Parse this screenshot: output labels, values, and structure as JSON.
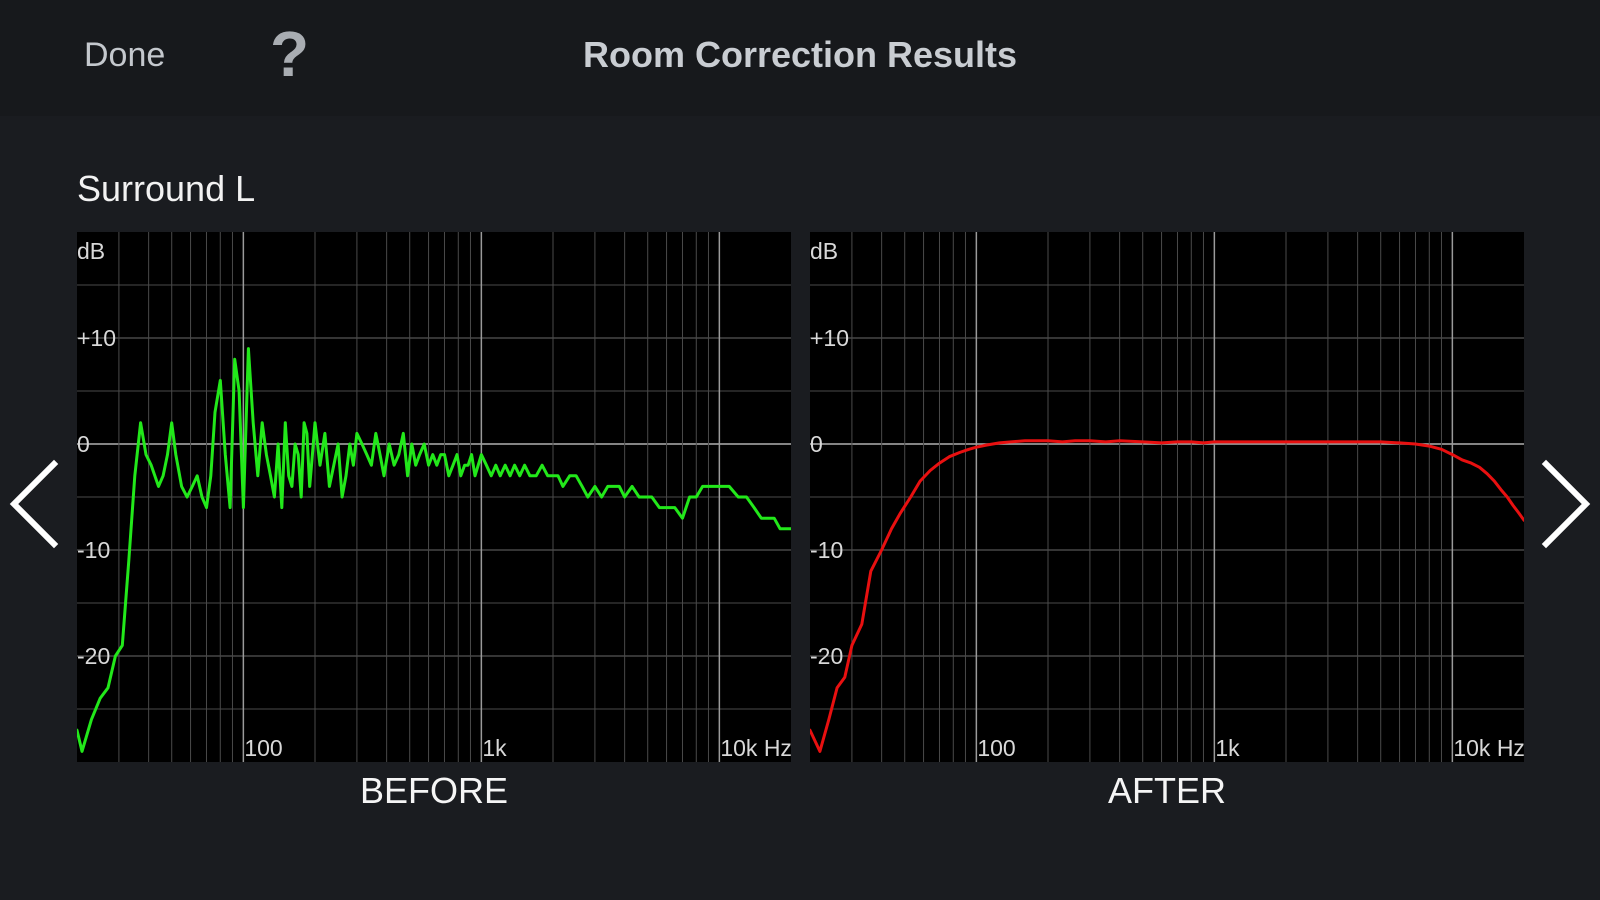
{
  "header": {
    "done_label": "Done",
    "help_label": "?",
    "title": "Room Correction Results"
  },
  "channel": "Surround L",
  "nav": {
    "prev_icon": "chevron-left-icon",
    "next_icon": "chevron-right-icon"
  },
  "chart_data": [
    {
      "type": "line",
      "caption": "BEFORE",
      "ylabel": "dB",
      "xscale": "log",
      "xlim": [
        20,
        20000
      ],
      "ylim": [
        -30,
        20
      ],
      "yticks": [
        "+10",
        "0",
        "-10",
        "-20"
      ],
      "ytick_values": [
        10,
        0,
        -10,
        -20
      ],
      "xticks": [
        "100",
        "1k",
        "10k Hz"
      ],
      "xtick_values": [
        100,
        1000,
        10000
      ],
      "grid": true,
      "color": "#22e81a",
      "series": [
        {
          "x": [
            20,
            21,
            23,
            25,
            27,
            29,
            31,
            33,
            35,
            37,
            39,
            41,
            44,
            46,
            48,
            50,
            52,
            55,
            58,
            61,
            64,
            67,
            70,
            73,
            76,
            80,
            84,
            88,
            92,
            96,
            100,
            105,
            110,
            115,
            120,
            125,
            130,
            135,
            140,
            145,
            150,
            155,
            160,
            165,
            170,
            175,
            180,
            185,
            190,
            195,
            200,
            210,
            220,
            230,
            240,
            250,
            260,
            270,
            280,
            290,
            300,
            315,
            330,
            345,
            360,
            375,
            390,
            410,
            430,
            450,
            470,
            490,
            510,
            530,
            550,
            575,
            600,
            625,
            650,
            675,
            700,
            730,
            760,
            790,
            820,
            850,
            880,
            910,
            940,
            970,
            1000,
            1050,
            1100,
            1150,
            1200,
            1260,
            1320,
            1380,
            1450,
            1520,
            1600,
            1700,
            1800,
            1900,
            2000,
            2100,
            2200,
            2350,
            2500,
            2650,
            2800,
            3000,
            3200,
            3400,
            3600,
            3800,
            4000,
            4300,
            4600,
            4900,
            5200,
            5600,
            6000,
            6500,
            7000,
            7500,
            8000,
            8500,
            9000,
            9500,
            10000,
            11000,
            12000,
            13000,
            14000,
            15000,
            16000,
            17000,
            18000,
            19000,
            20000
          ],
          "y": [
            -27,
            -29,
            -26,
            -24,
            -23,
            -20,
            -19,
            -11,
            -3,
            2,
            -1,
            -2,
            -4,
            -3,
            -1,
            2,
            -1,
            -4,
            -5,
            -4,
            -3,
            -5,
            -6,
            -3,
            3,
            6,
            -1,
            -6,
            8,
            5,
            -6,
            9,
            2,
            -3,
            2,
            -1,
            -3,
            -5,
            0,
            -6,
            2,
            -3,
            -4,
            0,
            -1,
            -5,
            2,
            1,
            -4,
            -1,
            2,
            -2,
            1,
            -4,
            -2,
            0,
            -5,
            -3,
            0,
            -2,
            1,
            0,
            -1,
            -2,
            1,
            -1,
            -3,
            0,
            -2,
            -1,
            1,
            -3,
            0,
            -2,
            -1,
            0,
            -2,
            -1,
            -2,
            -1,
            -1,
            -3,
            -2,
            -1,
            -3,
            -2,
            -2,
            -1,
            -3,
            -2,
            -1,
            -2,
            -3,
            -2,
            -3,
            -2,
            -3,
            -2,
            -3,
            -2,
            -3,
            -3,
            -2,
            -3,
            -3,
            -3,
            -4,
            -3,
            -3,
            -4,
            -5,
            -4,
            -5,
            -4,
            -4,
            -4,
            -5,
            -4,
            -5,
            -5,
            -5,
            -6,
            -6,
            -6,
            -7,
            -5,
            -5,
            -4,
            -4,
            -4,
            -4,
            -4,
            -5,
            -5,
            -6,
            -7,
            -7,
            -7,
            -8,
            -8,
            -8
          ]
        }
      ]
    },
    {
      "type": "line",
      "caption": "AFTER",
      "ylabel": "dB",
      "xscale": "log",
      "xlim": [
        20,
        20000
      ],
      "ylim": [
        -30,
        20
      ],
      "yticks": [
        "+10",
        "0",
        "-10",
        "-20"
      ],
      "ytick_values": [
        10,
        0,
        -10,
        -20
      ],
      "xticks": [
        "100",
        "1k",
        "10k Hz"
      ],
      "xtick_values": [
        100,
        1000,
        10000
      ],
      "grid": true,
      "color": "#e81010",
      "series": [
        {
          "x": [
            20,
            22,
            24,
            26,
            28,
            30,
            33,
            36,
            40,
            44,
            48,
            53,
            58,
            64,
            70,
            77,
            85,
            93,
            100,
            110,
            125,
            140,
            160,
            180,
            200,
            230,
            260,
            300,
            350,
            400,
            500,
            600,
            700,
            800,
            900,
            1000,
            1200,
            1500,
            2000,
            2500,
            3000,
            4000,
            5000,
            6000,
            7000,
            8000,
            9000,
            10000,
            11000,
            12000,
            13000,
            14000,
            15000,
            16000,
            17000,
            18000,
            19000,
            20000
          ],
          "y": [
            -27,
            -29,
            -26,
            -23,
            -22,
            -19,
            -17,
            -12,
            -10,
            -8,
            -6.5,
            -5,
            -3.5,
            -2.5,
            -1.8,
            -1.2,
            -0.8,
            -0.5,
            -0.3,
            -0.1,
            0.1,
            0.2,
            0.3,
            0.3,
            0.3,
            0.2,
            0.3,
            0.3,
            0.2,
            0.3,
            0.2,
            0.1,
            0.2,
            0.2,
            0.1,
            0.2,
            0.2,
            0.2,
            0.2,
            0.2,
            0.2,
            0.2,
            0.2,
            0.1,
            0.0,
            -0.2,
            -0.5,
            -1.0,
            -1.5,
            -1.8,
            -2.2,
            -2.8,
            -3.5,
            -4.3,
            -5.0,
            -5.8,
            -6.5,
            -7.2
          ]
        }
      ]
    }
  ]
}
